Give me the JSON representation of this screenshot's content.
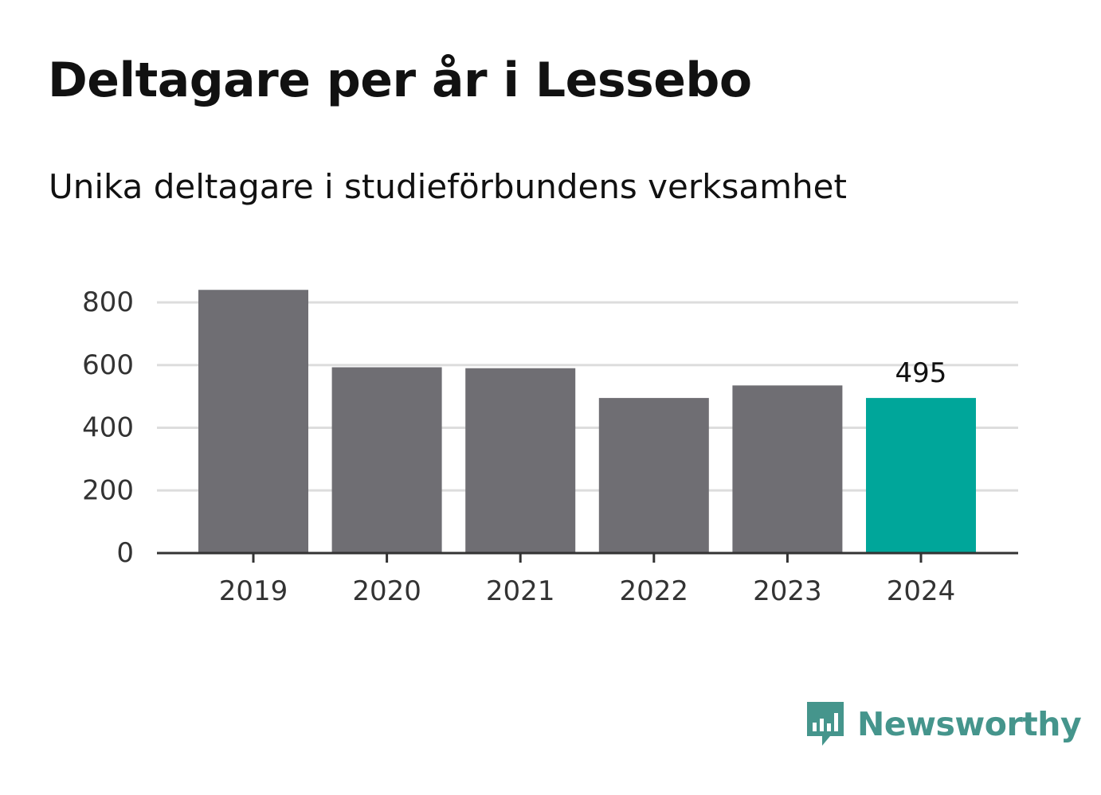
{
  "title": "Deltagare per år i Lessebo",
  "subtitle": "Unika deltagare i studieförbundens verksamhet",
  "brand": {
    "name": "Newsworthy",
    "color": "#45958c",
    "icon": "bar-chart-speech-bubble-icon"
  },
  "colors": {
    "bar_default": "#6f6e73",
    "bar_highlight": "#00a69a",
    "grid": "#dddddd",
    "axis": "#333333"
  },
  "chart_data": {
    "type": "bar",
    "categories": [
      "2019",
      "2020",
      "2021",
      "2022",
      "2023",
      "2024"
    ],
    "values": [
      840,
      593,
      590,
      495,
      535,
      495
    ],
    "highlight_index": 5,
    "data_labels": [
      {
        "index": 5,
        "text": "495"
      }
    ],
    "yticks": [
      0,
      200,
      400,
      600,
      800
    ],
    "ytick_labels": [
      "0",
      "200",
      "400",
      "600",
      "800"
    ],
    "ylim": [
      0,
      800
    ],
    "grid": true
  }
}
